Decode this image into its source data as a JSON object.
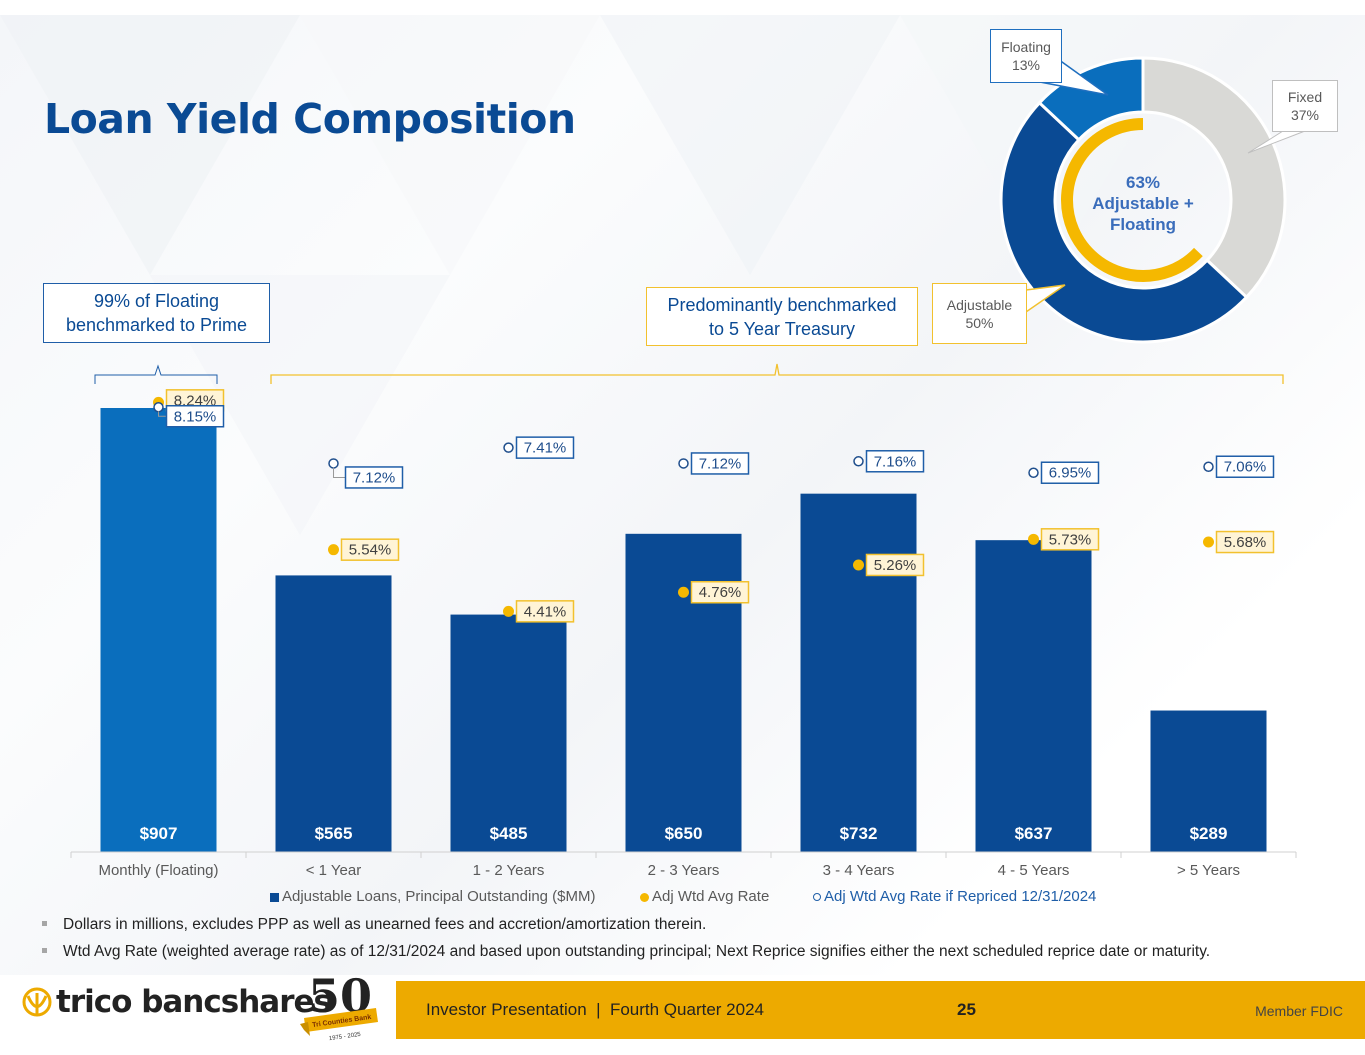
{
  "title": "Loan Yield Composition",
  "callouts": {
    "prime": [
      "99% of Floating",
      "benchmarked to Prime"
    ],
    "treasury": [
      "Predominantly benchmarked",
      "to 5 Year Treasury"
    ]
  },
  "pie": {
    "center_text": [
      "63%",
      "Adjustable +",
      "Floating"
    ],
    "labels": {
      "floating": [
        "Floating",
        "13%"
      ],
      "fixed": [
        "Fixed",
        "37%"
      ],
      "adjustable": [
        "Adjustable",
        "50%"
      ]
    }
  },
  "legend": {
    "bars": "Adjustable Loans, Principal Outstanding ($MM)",
    "rate": "Adj Wtd Avg Rate",
    "repriced": "Adj Wtd Avg Rate if Repriced 12/31/2024"
  },
  "notes": [
    "Dollars in millions, excludes PPP as well as unearned fees and accretion/amortization therein.",
    "Wtd Avg Rate (weighted average rate) as of 12/31/2024 and based upon outstanding principal; Next Reprice signifies either the next scheduled reprice date or maturity."
  ],
  "footer": {
    "company": "trico bancshares",
    "anniversary": "50",
    "anniversary_banner": "Tri Counties Bank",
    "anniversary_years": "1975 - 2025",
    "presentation": "Investor Presentation  |  Fourth Quarter 2024",
    "page": "25",
    "fdic": "Member FDIC"
  },
  "colors": {
    "title": "#0a4a94",
    "bar_primary": "#0a4a94",
    "bar_floating": "#0a6ebd",
    "rate_gold": "#f5b800",
    "fixed_gray": "#d9d9d6",
    "footer_gold": "#edaa00"
  },
  "chart_data": [
    {
      "type": "bar",
      "title": "",
      "categories": [
        "Monthly (Floating)",
        "< 1 Year",
        "1 - 2 Years",
        "2 - 3 Years",
        "3 - 4 Years",
        "4 - 5 Years",
        "> 5 Years"
      ],
      "series": [
        {
          "name": "Adjustable Loans, Principal Outstanding ($MM)",
          "axis": "primary",
          "type": "bar",
          "values": [
            907,
            565,
            485,
            650,
            732,
            637,
            289
          ],
          "labels": [
            "$907",
            "$565",
            "$485",
            "$650",
            "$732",
            "$637",
            "$289"
          ]
        },
        {
          "name": "Adj Wtd Avg Rate",
          "axis": "secondary",
          "type": "scatter",
          "values": [
            8.24,
            5.54,
            4.41,
            4.76,
            5.26,
            5.73,
            5.68
          ],
          "labels": [
            "8.24%",
            "5.54%",
            "4.41%",
            "4.76%",
            "5.26%",
            "5.73%",
            "5.68%"
          ]
        },
        {
          "name": "Adj Wtd Avg Rate if Repriced 12/31/2024",
          "axis": "secondary",
          "type": "scatter",
          "values": [
            8.15,
            7.12,
            7.41,
            7.12,
            7.16,
            6.95,
            7.06
          ],
          "labels": [
            "8.15%",
            "7.12%",
            "7.41%",
            "7.12%",
            "7.16%",
            "6.95%",
            "7.06%"
          ]
        }
      ],
      "xlabel": "",
      "ylabel": "",
      "ylim": [
        0,
        907
      ],
      "y2lim": [
        0,
        8.24
      ],
      "grid": false,
      "legend": "bottom"
    },
    {
      "type": "pie",
      "title": "",
      "style": "donut",
      "categories": [
        "Fixed",
        "Adjustable",
        "Floating"
      ],
      "values": [
        37,
        50,
        13
      ],
      "inner_ring": {
        "label": "Adjustable + Floating",
        "value": 63
      }
    }
  ]
}
